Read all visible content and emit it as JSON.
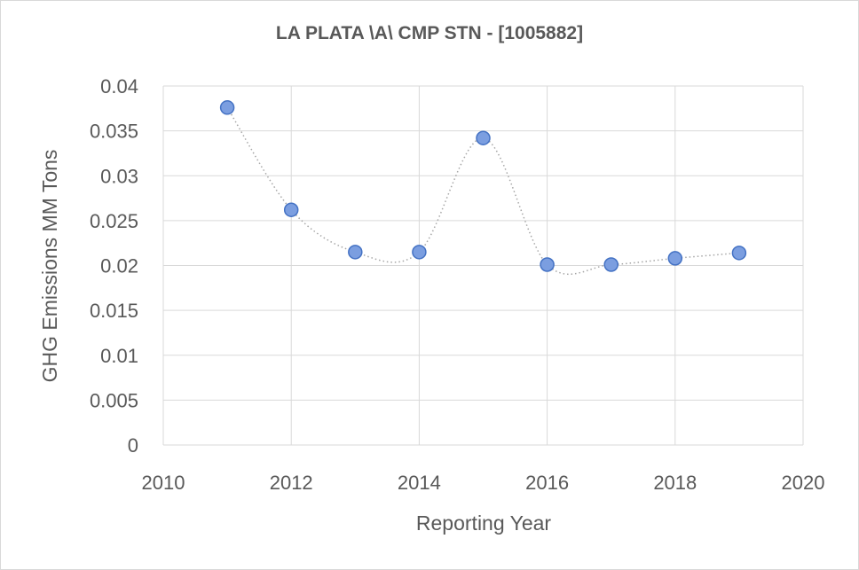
{
  "chart_data": {
    "type": "scatter",
    "title": "LA PLATA \\A\\ CMP STN - [1005882]",
    "xlabel": "Reporting Year",
    "ylabel": "GHG Emissions MM Tons",
    "xlim": [
      2010,
      2020
    ],
    "ylim": [
      0,
      0.04
    ],
    "x_ticks": [
      2010,
      2012,
      2014,
      2016,
      2018,
      2020
    ],
    "y_ticks": [
      0,
      0.005,
      0.01,
      0.015,
      0.02,
      0.025,
      0.03,
      0.035,
      0.04
    ],
    "y_tick_labels": [
      "0",
      "0.005",
      "0.01",
      "0.015",
      "0.02",
      "0.025",
      "0.03",
      "0.035",
      "0.04"
    ],
    "grid": true,
    "trendline": "smoothed dotted",
    "series": [
      {
        "name": "GHG Emissions",
        "x": [
          2011,
          2012,
          2013,
          2014,
          2015,
          2016,
          2017,
          2018,
          2019
        ],
        "y": [
          0.0376,
          0.0262,
          0.0215,
          0.0215,
          0.0342,
          0.0201,
          0.0201,
          0.0208,
          0.0214
        ]
      }
    ],
    "colors": {
      "marker_fill": "#7b9ee0",
      "marker_stroke": "#4472c4",
      "line": "#a6a6a6",
      "grid": "#d9d9d9",
      "text": "#595959"
    }
  }
}
